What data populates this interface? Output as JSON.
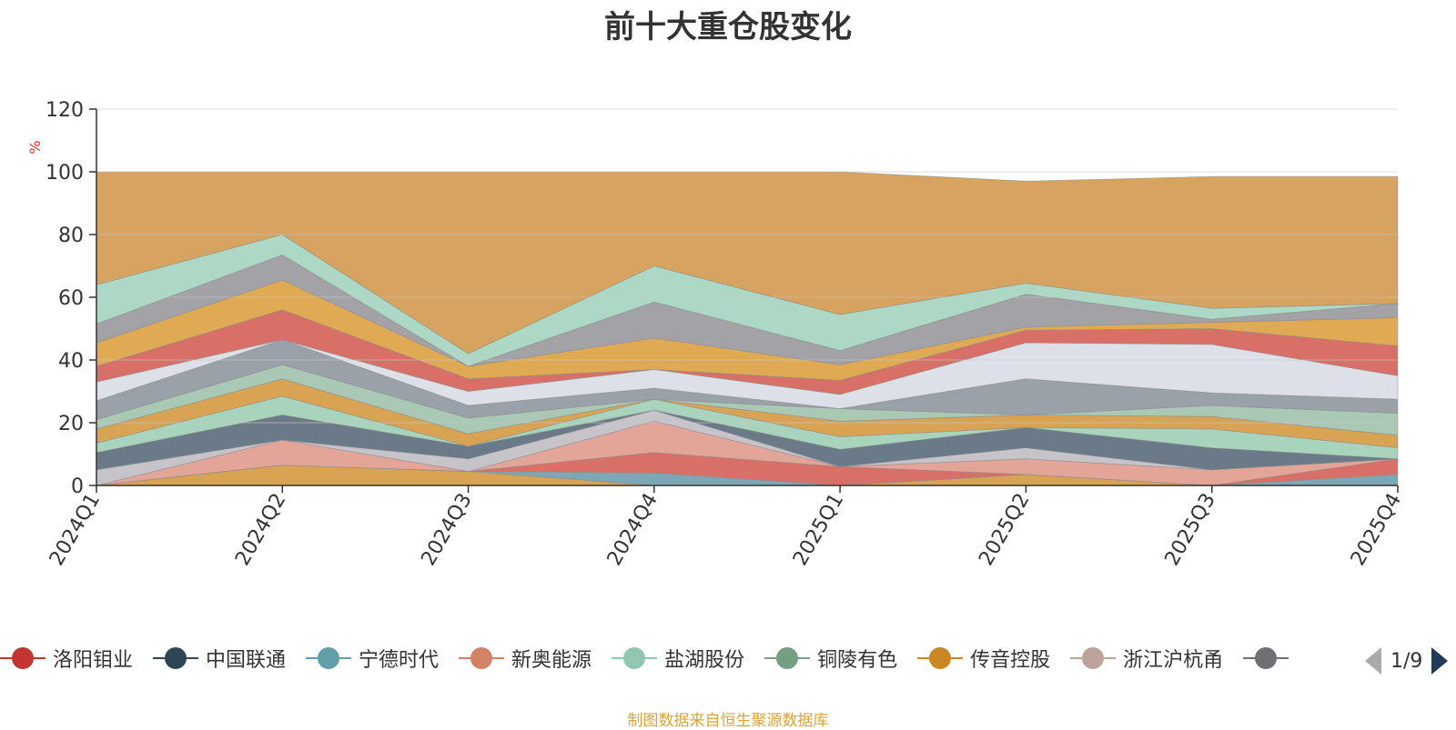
{
  "chart_data": {
    "type": "area",
    "title": "前十大重仓股变化",
    "ylabel": "%",
    "ylim": [
      0,
      120
    ],
    "yticks": [
      0,
      20,
      40,
      60,
      80,
      100,
      120
    ],
    "grid": true,
    "legend_position": "bottom",
    "x": [
      "2024Q1",
      "2024Q2",
      "2024Q3",
      "2024Q4",
      "2025Q1",
      "2025Q2",
      "2025Q3",
      "2025Q4"
    ],
    "boundaries": [
      [
        0,
        6.5,
        4.5,
        0,
        0,
        3.5,
        0,
        0
      ],
      [
        0,
        6.5,
        4.5,
        4,
        0,
        3.5,
        0,
        3.5
      ],
      [
        0,
        6.5,
        4.5,
        10.5,
        6,
        3.5,
        0,
        8.5
      ],
      [
        0,
        14.5,
        4.5,
        20.5,
        6,
        8.5,
        5,
        8.5
      ],
      [
        5,
        14.5,
        8.5,
        24,
        6,
        12,
        5,
        8.5
      ],
      [
        10.5,
        22.5,
        12.5,
        24,
        11.5,
        18.5,
        12,
        8.5
      ],
      [
        13.5,
        28.5,
        12.5,
        27.5,
        15.5,
        18.5,
        18,
        12
      ],
      [
        18,
        34,
        16.5,
        27.5,
        20.5,
        22.5,
        22,
        16
      ],
      [
        21,
        38.5,
        21.5,
        27.5,
        24.5,
        22.5,
        25.5,
        23
      ],
      [
        27,
        46.5,
        25.5,
        31,
        24.5,
        34,
        29.5,
        27.5
      ],
      [
        33,
        46.5,
        30,
        37,
        29,
        45.5,
        45,
        35
      ],
      [
        38,
        56,
        34,
        37,
        33.5,
        49.5,
        50,
        44.5
      ],
      [
        45.5,
        65.5,
        38,
        47,
        38.5,
        50.5,
        52,
        53.5
      ],
      [
        51.5,
        73.5,
        38,
        58.5,
        43,
        61,
        53,
        58
      ],
      [
        64,
        80,
        42,
        70,
        54.5,
        64.5,
        56.5,
        58
      ],
      [
        100,
        100,
        100,
        100,
        100,
        97,
        98.5,
        98.5
      ]
    ],
    "fill_colors": [
      "#d9a354",
      "#7ea7b5",
      "#d97068",
      "#e3a597",
      "#c7c4c9",
      "#6b7a88",
      "#a8d4bd",
      "#d9a354",
      "#a9c9b5",
      "#9aa1a8",
      "#dde0e6",
      "#d97068",
      "#e0aa55",
      "#a3a2a6",
      "#aed8c6",
      "#d6a460"
    ],
    "line_color": "#8a8a8a",
    "legend": {
      "items": [
        {
          "label": "洛阳钼业",
          "color": "#c23531"
        },
        {
          "label": "中国联通",
          "color": "#2f4554"
        },
        {
          "label": "宁德时代",
          "color": "#61a0a8"
        },
        {
          "label": "新奥能源",
          "color": "#d48265"
        },
        {
          "label": "盐湖股份",
          "color": "#91c7ae"
        },
        {
          "label": "铜陵有色",
          "color": "#749f83"
        },
        {
          "label": "传音控股",
          "color": "#ca8622"
        },
        {
          "label": "浙江沪杭甬",
          "color": "#bda29a"
        },
        {
          "label": "",
          "color": "#6e7074"
        }
      ],
      "page": "1/9"
    },
    "source_note": "制图数据来自恒生聚源数据库"
  }
}
